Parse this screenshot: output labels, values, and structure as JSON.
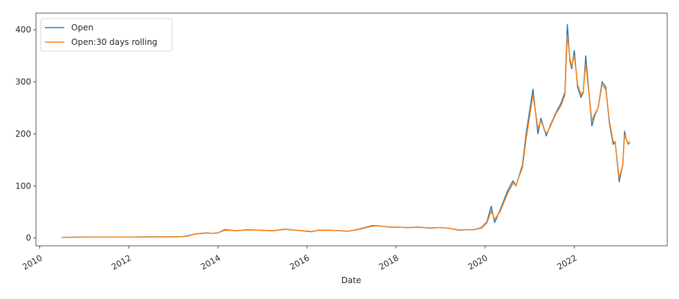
{
  "chart_data": {
    "type": "line",
    "title": "",
    "xlabel": "Date",
    "ylabel": "",
    "x_range": [
      "2009-12-01",
      "2024-02-01"
    ],
    "ylim": [
      -15,
      432
    ],
    "x_ticks": [
      "2010",
      "2012",
      "2014",
      "2016",
      "2018",
      "2020",
      "2022"
    ],
    "y_ticks": [
      0,
      100,
      200,
      300,
      400
    ],
    "grid": false,
    "legend": {
      "placement": "top-left",
      "entries": [
        "Open",
        "Open:30 days rolling"
      ]
    },
    "series": [
      {
        "name": "Open",
        "color": "#1f77b4",
        "x": [
          "2010-06-29",
          "2010-09-01",
          "2011-01-01",
          "2011-06-01",
          "2012-01-01",
          "2012-06-01",
          "2013-01-01",
          "2013-03-15",
          "2013-05-01",
          "2013-07-01",
          "2013-10-01",
          "2013-11-15",
          "2014-01-01",
          "2014-02-27",
          "2014-06-01",
          "2014-09-01",
          "2014-12-15",
          "2015-04-01",
          "2015-07-01",
          "2015-10-01",
          "2016-02-10",
          "2016-04-01",
          "2016-07-01",
          "2016-10-01",
          "2016-12-01",
          "2017-03-01",
          "2017-06-20",
          "2017-09-01",
          "2017-11-01",
          "2018-01-01",
          "2018-04-01",
          "2018-07-01",
          "2018-10-01",
          "2019-01-01",
          "2019-03-01",
          "2019-06-03",
          "2019-08-01",
          "2019-10-01",
          "2019-12-01",
          "2020-01-15",
          "2020-02-19",
          "2020-03-18",
          "2020-05-01",
          "2020-07-01",
          "2020-08-15",
          "2020-09-08",
          "2020-11-01",
          "2020-12-01",
          "2021-01-26",
          "2021-03-08",
          "2021-04-01",
          "2021-05-15",
          "2021-06-15",
          "2021-08-01",
          "2021-09-15",
          "2021-10-15",
          "2021-11-04",
          "2021-11-25",
          "2021-12-10",
          "2021-12-31",
          "2022-01-27",
          "2022-02-24",
          "2022-03-15",
          "2022-04-04",
          "2022-05-24",
          "2022-06-15",
          "2022-07-15",
          "2022-08-16",
          "2022-09-15",
          "2022-10-15",
          "2022-11-15",
          "2022-12-01",
          "2023-01-03",
          "2023-02-01",
          "2023-02-16",
          "2023-03-01",
          "2023-03-20",
          "2023-04-01"
        ],
        "values": [
          1.3,
          1.4,
          1.8,
          1.8,
          1.9,
          2.2,
          2.3,
          2.6,
          4.5,
          8,
          10,
          9,
          10,
          16,
          14,
          16,
          15,
          14,
          17,
          15,
          12,
          15,
          15,
          14,
          13,
          17,
          24,
          23,
          21,
          21,
          20,
          21,
          19,
          20,
          19,
          15,
          16,
          16,
          20,
          31,
          61,
          30,
          53,
          90,
          110,
          100,
          140,
          200,
          286,
          200,
          230,
          196,
          215,
          240,
          260,
          280,
          410,
          340,
          325,
          360,
          290,
          270,
          280,
          350,
          215,
          235,
          250,
          300,
          290,
          220,
          180,
          185,
          108,
          140,
          205,
          190,
          180,
          185
        ]
      },
      {
        "name": "Open:30 days rolling",
        "color": "#ff7f0e",
        "x": [
          "2010-06-29",
          "2010-09-01",
          "2011-01-01",
          "2011-06-01",
          "2012-01-01",
          "2012-06-01",
          "2013-01-01",
          "2013-03-15",
          "2013-05-01",
          "2013-07-01",
          "2013-10-01",
          "2013-11-15",
          "2014-01-01",
          "2014-02-27",
          "2014-06-01",
          "2014-09-01",
          "2014-12-15",
          "2015-04-01",
          "2015-07-01",
          "2015-10-01",
          "2016-02-10",
          "2016-04-01",
          "2016-07-01",
          "2016-10-01",
          "2016-12-01",
          "2017-03-01",
          "2017-06-20",
          "2017-09-01",
          "2017-11-01",
          "2018-01-01",
          "2018-04-01",
          "2018-07-01",
          "2018-10-01",
          "2019-01-01",
          "2019-03-01",
          "2019-06-03",
          "2019-08-01",
          "2019-10-01",
          "2019-12-01",
          "2020-01-15",
          "2020-02-19",
          "2020-03-18",
          "2020-05-01",
          "2020-07-01",
          "2020-08-15",
          "2020-09-08",
          "2020-11-01",
          "2020-12-01",
          "2021-01-26",
          "2021-03-08",
          "2021-04-01",
          "2021-05-15",
          "2021-06-15",
          "2021-08-01",
          "2021-09-15",
          "2021-10-15",
          "2021-11-04",
          "2021-11-25",
          "2021-12-10",
          "2021-12-31",
          "2022-01-27",
          "2022-02-24",
          "2022-03-15",
          "2022-04-04",
          "2022-05-24",
          "2022-06-15",
          "2022-07-15",
          "2022-08-16",
          "2022-09-15",
          "2022-10-15",
          "2022-11-15",
          "2022-12-01",
          "2023-01-03",
          "2023-02-01",
          "2023-02-16",
          "2023-03-01",
          "2023-03-20",
          "2023-04-01"
        ],
        "values": [
          1.3,
          1.4,
          1.7,
          1.8,
          1.9,
          2.1,
          2.3,
          2.5,
          4,
          7.5,
          9.5,
          9,
          10,
          15,
          14,
          15.5,
          15,
          14,
          16.5,
          15,
          12.5,
          14.5,
          15,
          14,
          13,
          16.5,
          23,
          23,
          21,
          21,
          20,
          20.5,
          19.5,
          20,
          19,
          15.5,
          16,
          16,
          19,
          29,
          52,
          36,
          50,
          85,
          105,
          102,
          135,
          190,
          275,
          210,
          225,
          200,
          213,
          238,
          255,
          275,
          390,
          345,
          330,
          350,
          295,
          275,
          282,
          335,
          225,
          238,
          250,
          295,
          285,
          225,
          185,
          183,
          115,
          140,
          198,
          190,
          182,
          184
        ]
      }
    ]
  }
}
